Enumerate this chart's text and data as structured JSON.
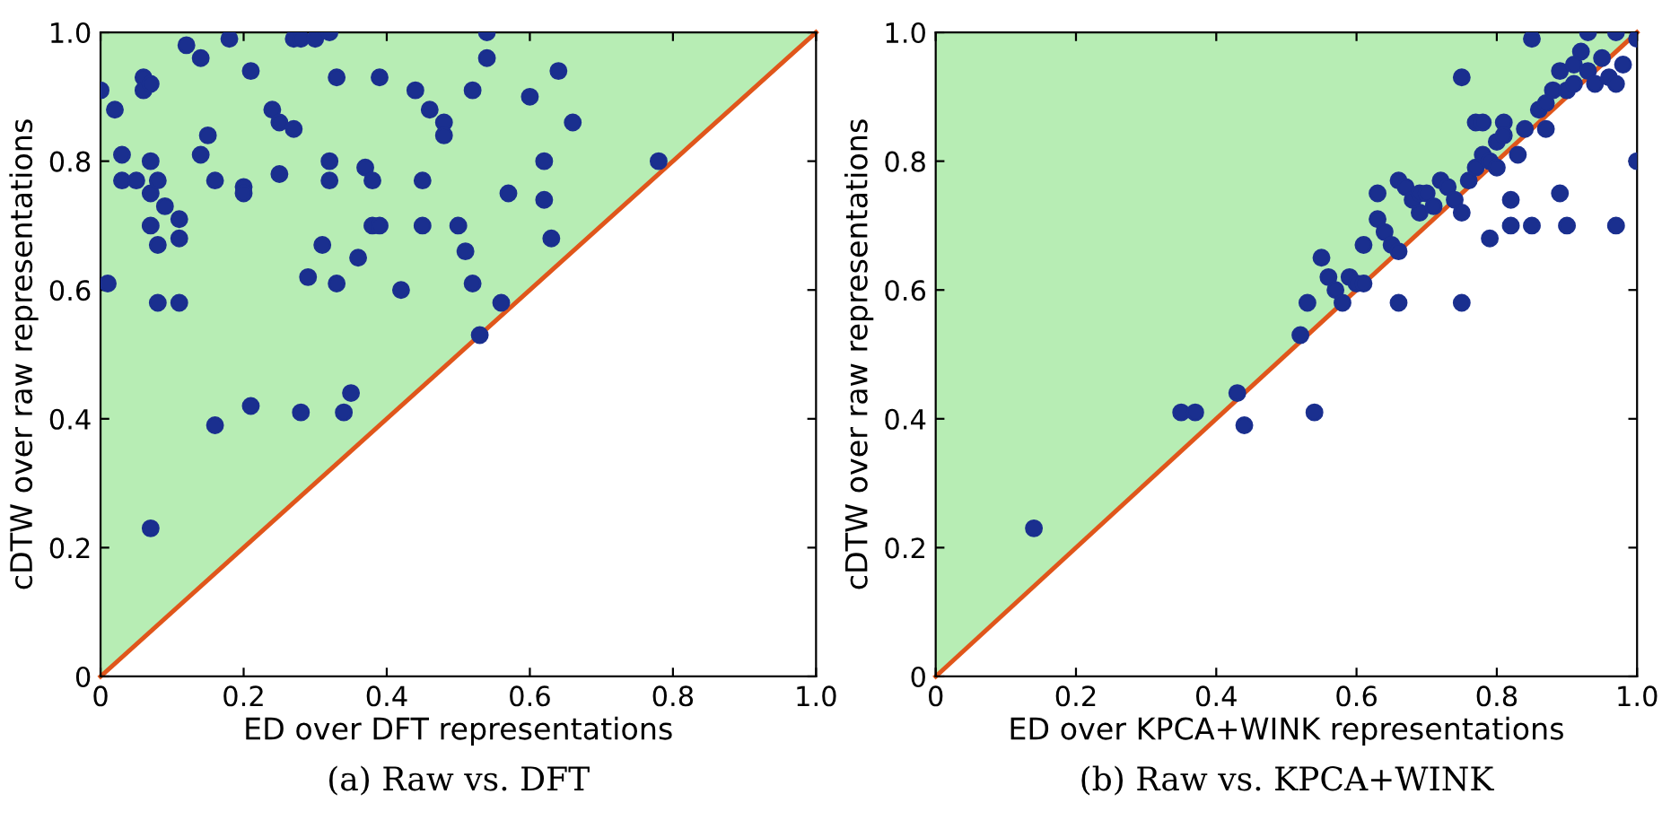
{
  "chart_data": [
    {
      "type": "scatter",
      "title": "(a) Raw vs. DFT",
      "xlabel": "ED over DFT representations",
      "ylabel": "cDTW over raw representations",
      "marker": "circle",
      "grid": false,
      "legend": false,
      "xlim": [
        0,
        1
      ],
      "ylim": [
        0,
        1
      ],
      "xticks": [
        0,
        0.2,
        0.4,
        0.6,
        0.8,
        {
          "value": 1,
          "label": "1.0"
        }
      ],
      "yticks": [
        0,
        0.2,
        0.4,
        0.6,
        0.8,
        {
          "value": 1,
          "label": "1.0"
        }
      ],
      "series": [
        {
          "type": "line",
          "marker": "none",
          "color": "#e0561b",
          "x": [
            0,
            1
          ],
          "values": [
            0,
            1
          ],
          "lower": [
            0,
            1
          ],
          "upper": [
            1,
            1
          ]
        },
        {
          "color": "#1a2f8f",
          "x": [
            0.0,
            0.01,
            0.02,
            0.03,
            0.03,
            0.05,
            0.06,
            0.06,
            0.07,
            0.07,
            0.07,
            0.08,
            0.07,
            0.08,
            0.09,
            0.08,
            0.07,
            0.11,
            0.11,
            0.11,
            0.12,
            0.14,
            0.15,
            0.14,
            0.16,
            0.16,
            0.18,
            0.2,
            0.2,
            0.21,
            0.21,
            0.24,
            0.25,
            0.25,
            0.27,
            0.27,
            0.28,
            0.28,
            0.29,
            0.3,
            0.31,
            0.32,
            0.32,
            0.32,
            0.33,
            0.33,
            0.34,
            0.35,
            0.36,
            0.37,
            0.38,
            0.38,
            0.39,
            0.39,
            0.42,
            0.44,
            0.45,
            0.45,
            0.46,
            0.48,
            0.48,
            0.5,
            0.51,
            0.52,
            0.52,
            0.53,
            0.54,
            0.54,
            0.56,
            0.57,
            0.6,
            0.62,
            0.62,
            0.63,
            0.64,
            0.66,
            0.78
          ],
          "values": [
            0.91,
            0.61,
            0.88,
            0.81,
            0.77,
            0.77,
            0.93,
            0.91,
            0.92,
            0.8,
            0.75,
            0.77,
            0.7,
            0.67,
            0.73,
            0.58,
            0.23,
            0.71,
            0.68,
            0.58,
            0.98,
            0.96,
            0.84,
            0.81,
            0.77,
            0.39,
            0.99,
            0.76,
            0.75,
            0.94,
            0.42,
            0.88,
            0.86,
            0.78,
            0.85,
            0.99,
            0.99,
            0.41,
            0.62,
            0.99,
            0.67,
            1.0,
            0.8,
            0.77,
            0.93,
            0.61,
            0.41,
            0.44,
            0.65,
            0.79,
            0.7,
            0.77,
            0.93,
            0.7,
            0.6,
            0.91,
            0.7,
            0.77,
            0.88,
            0.86,
            0.84,
            0.7,
            0.66,
            0.91,
            0.61,
            0.53,
            0.96,
            1.0,
            0.58,
            0.75,
            0.9,
            0.8,
            0.74,
            0.68,
            0.94,
            0.86,
            0.8
          ]
        }
      ]
    },
    {
      "type": "scatter",
      "title": "(b) Raw vs. KPCA+WINK",
      "xlabel": "ED over KPCA+WINK representations",
      "ylabel": "cDTW over raw representations",
      "marker": "circle",
      "grid": false,
      "legend": false,
      "xlim": [
        0,
        1
      ],
      "ylim": [
        0,
        1
      ],
      "xticks": [
        0,
        0.2,
        0.4,
        0.6,
        0.8,
        {
          "value": 1,
          "label": "1.0"
        }
      ],
      "yticks": [
        0,
        0.2,
        0.4,
        0.6,
        0.8,
        {
          "value": 1,
          "label": "1.0"
        }
      ],
      "series": [
        {
          "type": "line",
          "marker": "none",
          "color": "#e0561b",
          "x": [
            0,
            1
          ],
          "values": [
            0,
            1
          ],
          "lower": [
            0,
            1
          ],
          "upper": [
            1,
            1
          ]
        },
        {
          "color": "#1a2f8f",
          "x": [
            0.14,
            0.35,
            0.37,
            0.43,
            0.44,
            0.54,
            0.52,
            0.53,
            0.55,
            0.56,
            0.57,
            0.58,
            0.59,
            0.6,
            0.61,
            0.61,
            0.63,
            0.63,
            0.64,
            0.65,
            0.66,
            0.66,
            0.66,
            0.67,
            0.68,
            0.69,
            0.69,
            0.7,
            0.71,
            0.72,
            0.73,
            0.74,
            0.75,
            0.75,
            0.75,
            0.76,
            0.77,
            0.77,
            0.78,
            0.78,
            0.79,
            0.79,
            0.8,
            0.8,
            0.81,
            0.81,
            0.82,
            0.82,
            0.83,
            0.84,
            0.85,
            0.85,
            0.86,
            0.87,
            0.87,
            0.88,
            0.89,
            0.89,
            0.9,
            0.9,
            0.91,
            0.91,
            0.92,
            0.93,
            0.93,
            0.94,
            0.95,
            0.96,
            0.97,
            0.97,
            0.97,
            0.98,
            1.0,
            1.0
          ],
          "values": [
            0.23,
            0.41,
            0.41,
            0.44,
            0.39,
            0.41,
            0.53,
            0.58,
            0.65,
            0.62,
            0.6,
            0.58,
            0.62,
            0.61,
            0.61,
            0.67,
            0.71,
            0.75,
            0.69,
            0.67,
            0.66,
            0.58,
            0.77,
            0.76,
            0.74,
            0.72,
            0.75,
            0.75,
            0.73,
            0.77,
            0.76,
            0.74,
            0.72,
            0.58,
            0.93,
            0.77,
            0.79,
            0.86,
            0.86,
            0.81,
            0.8,
            0.68,
            0.83,
            0.79,
            0.86,
            0.84,
            0.74,
            0.7,
            0.81,
            0.85,
            0.99,
            0.7,
            0.88,
            0.89,
            0.85,
            0.91,
            0.94,
            0.75,
            0.7,
            0.91,
            0.95,
            0.92,
            0.97,
            1.0,
            0.94,
            0.92,
            0.96,
            0.93,
            0.92,
            1.0,
            0.7,
            0.95,
            0.99,
            0.8
          ]
        }
      ]
    }
  ]
}
